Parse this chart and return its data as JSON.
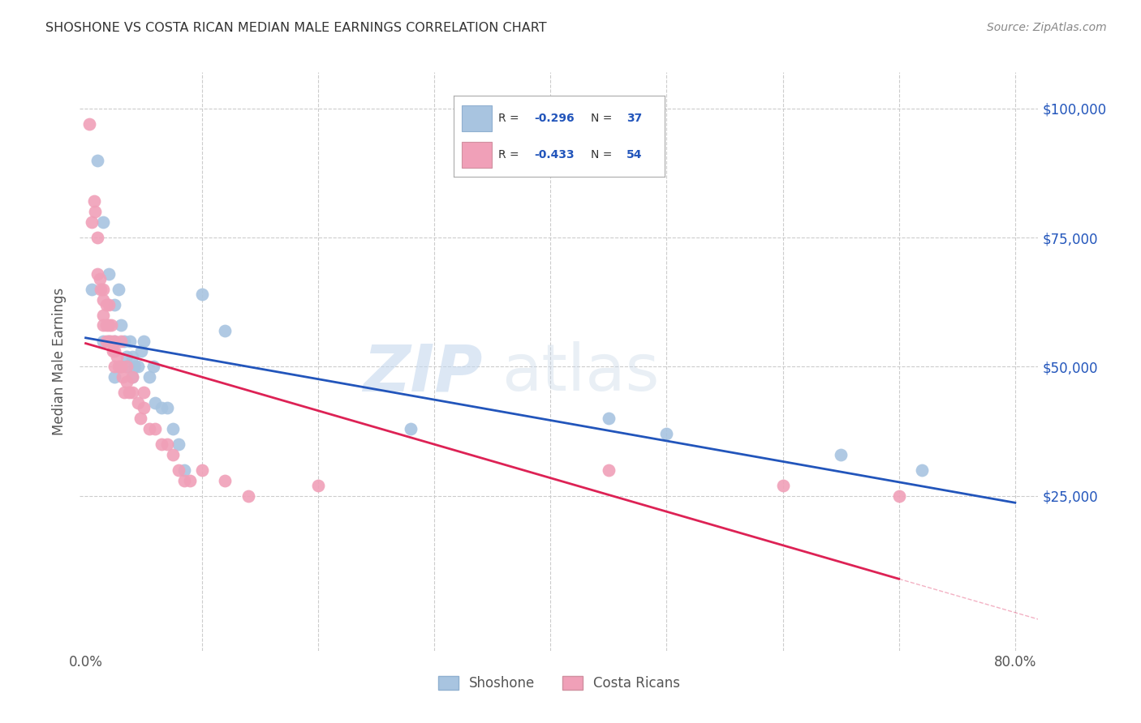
{
  "title": "SHOSHONE VS COSTA RICAN MEDIAN MALE EARNINGS CORRELATION CHART",
  "source": "Source: ZipAtlas.com",
  "ylabel": "Median Male Earnings",
  "legend_blue_r": "R = -0.296",
  "legend_blue_n": "N = 37",
  "legend_pink_r": "R = -0.433",
  "legend_pink_n": "N = 54",
  "legend_label_blue": "Shoshone",
  "legend_label_pink": "Costa Ricans",
  "yticks": [
    0,
    25000,
    50000,
    75000,
    100000
  ],
  "ytick_labels": [
    "",
    "$25,000",
    "$50,000",
    "$75,000",
    "$100,000"
  ],
  "xlim": [
    -0.005,
    0.82
  ],
  "ylim": [
    -5000,
    107000
  ],
  "watermark": "ZIPatlas",
  "background_color": "#ffffff",
  "grid_color": "#cccccc",
  "blue_scatter_color": "#a8c4e0",
  "pink_scatter_color": "#f0a0b8",
  "blue_line_color": "#2255bb",
  "pink_line_color": "#dd2255",
  "blue_scatter_x": [
    0.005,
    0.01,
    0.015,
    0.015,
    0.02,
    0.02,
    0.025,
    0.025,
    0.025,
    0.028,
    0.03,
    0.03,
    0.033,
    0.035,
    0.035,
    0.038,
    0.04,
    0.04,
    0.042,
    0.045,
    0.048,
    0.05,
    0.055,
    0.058,
    0.06,
    0.065,
    0.07,
    0.075,
    0.08,
    0.085,
    0.1,
    0.12,
    0.28,
    0.45,
    0.5,
    0.65,
    0.72
  ],
  "blue_scatter_y": [
    65000,
    90000,
    78000,
    55000,
    68000,
    55000,
    62000,
    55000,
    48000,
    65000,
    58000,
    50000,
    55000,
    52000,
    50000,
    55000,
    52000,
    48000,
    50000,
    50000,
    53000,
    55000,
    48000,
    50000,
    43000,
    42000,
    42000,
    38000,
    35000,
    30000,
    64000,
    57000,
    38000,
    40000,
    37000,
    33000,
    30000
  ],
  "pink_scatter_x": [
    0.003,
    0.005,
    0.007,
    0.008,
    0.01,
    0.01,
    0.012,
    0.013,
    0.015,
    0.015,
    0.015,
    0.015,
    0.018,
    0.018,
    0.018,
    0.02,
    0.02,
    0.02,
    0.022,
    0.022,
    0.023,
    0.025,
    0.025,
    0.025,
    0.027,
    0.028,
    0.03,
    0.03,
    0.032,
    0.033,
    0.035,
    0.035,
    0.037,
    0.04,
    0.04,
    0.045,
    0.047,
    0.05,
    0.05,
    0.055,
    0.06,
    0.065,
    0.07,
    0.075,
    0.08,
    0.085,
    0.09,
    0.1,
    0.12,
    0.14,
    0.2,
    0.45,
    0.6,
    0.7
  ],
  "pink_scatter_y": [
    97000,
    78000,
    82000,
    80000,
    75000,
    68000,
    67000,
    65000,
    65000,
    63000,
    60000,
    58000,
    62000,
    58000,
    55000,
    62000,
    58000,
    55000,
    58000,
    55000,
    53000,
    55000,
    53000,
    50000,
    52000,
    50000,
    55000,
    50000,
    48000,
    45000,
    50000,
    47000,
    45000,
    48000,
    45000,
    43000,
    40000,
    45000,
    42000,
    38000,
    38000,
    35000,
    35000,
    33000,
    30000,
    28000,
    28000,
    30000,
    28000,
    25000,
    27000,
    30000,
    27000,
    25000
  ]
}
